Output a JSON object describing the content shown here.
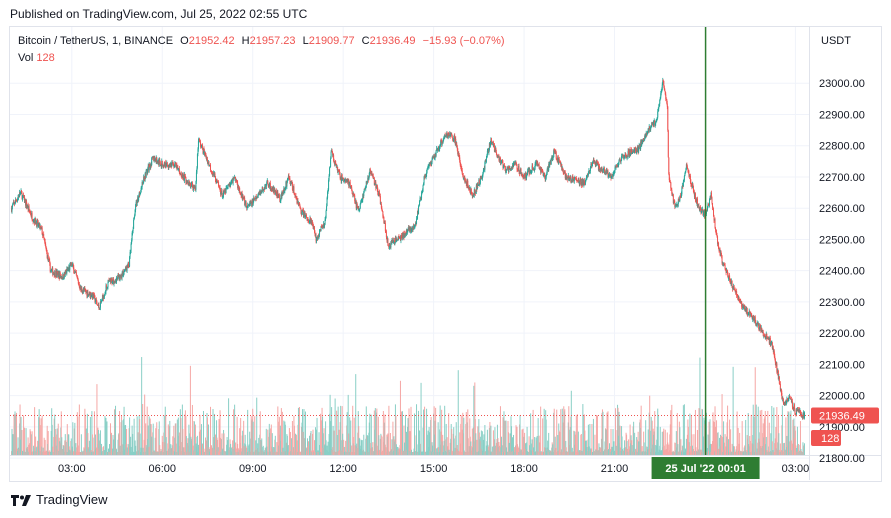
{
  "header": {
    "published": "Published on TradingView.com, Jul 25, 2022 02:55 UTC"
  },
  "legend": {
    "symbol": "Bitcoin / TetherUS, 1, BINANCE",
    "o_label": "O",
    "o_value": "21952.42",
    "h_label": "H",
    "h_value": "21957.23",
    "l_label": "L",
    "l_value": "21909.77",
    "c_label": "C",
    "c_value": "21936.49",
    "change": "−15.93 (−0.07%)",
    "vol_label": "Vol",
    "vol_value": "128"
  },
  "colors": {
    "up": "#26a69a",
    "down": "#ef5350",
    "crosshair": "#2e7d32",
    "up_volume": "#89cfc6",
    "down_volume": "#f5a7a5",
    "grid": "#f0f3fa"
  },
  "footer": {
    "brand": "TradingView",
    "logo": "tradingview-logo-icon"
  },
  "chart_data": {
    "type": "candlestick",
    "symbol": "BTCUSDT",
    "interval": "1",
    "exchange": "BINANCE",
    "y_axis_title": "USDT",
    "ylim": [
      21810,
      23180
    ],
    "y_ticks": [
      "23000.00",
      "22900.00",
      "22800.00",
      "22700.00",
      "22600.00",
      "22500.00",
      "22400.00",
      "22300.00",
      "22200.00",
      "22100.00",
      "22000.00",
      "21900.00",
      "21800.00"
    ],
    "x_ticks": [
      "03:00",
      "06:00",
      "09:00",
      "12:00",
      "15:00",
      "18:00",
      "21:00",
      "03:00"
    ],
    "x_ticks_hours": [
      3,
      6,
      9,
      12,
      15,
      18,
      21,
      27
    ],
    "xlim_hours": [
      0.95,
      27.45
    ],
    "last_price": "21936.49",
    "last_volume": "128",
    "crosshair": {
      "label": "25 Jul '22  00:01",
      "hour": 24.02
    },
    "price_path": [
      [
        1.0,
        22600
      ],
      [
        1.3,
        22650
      ],
      [
        1.7,
        22570
      ],
      [
        2.0,
        22530
      ],
      [
        2.3,
        22400
      ],
      [
        2.7,
        22380
      ],
      [
        3.0,
        22420
      ],
      [
        3.3,
        22340
      ],
      [
        3.7,
        22320
      ],
      [
        3.9,
        22280
      ],
      [
        4.2,
        22360
      ],
      [
        4.6,
        22380
      ],
      [
        4.9,
        22420
      ],
      [
        5.1,
        22600
      ],
      [
        5.4,
        22700
      ],
      [
        5.7,
        22760
      ],
      [
        6.0,
        22740
      ],
      [
        6.4,
        22740
      ],
      [
        6.7,
        22700
      ],
      [
        7.1,
        22660
      ],
      [
        7.2,
        22820
      ],
      [
        7.6,
        22730
      ],
      [
        8.0,
        22640
      ],
      [
        8.4,
        22700
      ],
      [
        8.8,
        22600
      ],
      [
        9.1,
        22630
      ],
      [
        9.5,
        22680
      ],
      [
        9.9,
        22630
      ],
      [
        10.2,
        22700
      ],
      [
        10.6,
        22590
      ],
      [
        11.0,
        22550
      ],
      [
        11.1,
        22500
      ],
      [
        11.4,
        22560
      ],
      [
        11.6,
        22780
      ],
      [
        11.9,
        22700
      ],
      [
        12.2,
        22680
      ],
      [
        12.5,
        22590
      ],
      [
        12.9,
        22720
      ],
      [
        13.2,
        22640
      ],
      [
        13.5,
        22480
      ],
      [
        13.8,
        22500
      ],
      [
        14.1,
        22520
      ],
      [
        14.4,
        22550
      ],
      [
        14.7,
        22700
      ],
      [
        15.0,
        22760
      ],
      [
        15.4,
        22840
      ],
      [
        15.7,
        22820
      ],
      [
        16.0,
        22700
      ],
      [
        16.3,
        22640
      ],
      [
        16.6,
        22700
      ],
      [
        16.9,
        22820
      ],
      [
        17.1,
        22770
      ],
      [
        17.4,
        22720
      ],
      [
        17.7,
        22740
      ],
      [
        18.0,
        22700
      ],
      [
        18.4,
        22740
      ],
      [
        18.7,
        22700
      ],
      [
        19.0,
        22780
      ],
      [
        19.4,
        22700
      ],
      [
        19.7,
        22690
      ],
      [
        20.0,
        22680
      ],
      [
        20.3,
        22750
      ],
      [
        20.6,
        22720
      ],
      [
        20.9,
        22700
      ],
      [
        21.2,
        22760
      ],
      [
        21.5,
        22780
      ],
      [
        21.8,
        22790
      ],
      [
        22.1,
        22850
      ],
      [
        22.4,
        22880
      ],
      [
        22.6,
        23010
      ],
      [
        22.75,
        22920
      ],
      [
        22.8,
        22700
      ],
      [
        23.0,
        22600
      ],
      [
        23.2,
        22640
      ],
      [
        23.4,
        22740
      ],
      [
        23.6,
        22660
      ],
      [
        23.8,
        22600
      ],
      [
        24.0,
        22580
      ],
      [
        24.2,
        22640
      ],
      [
        24.4,
        22500
      ],
      [
        24.6,
        22420
      ],
      [
        24.8,
        22380
      ],
      [
        25.0,
        22330
      ],
      [
        25.3,
        22280
      ],
      [
        25.6,
        22250
      ],
      [
        25.8,
        22220
      ],
      [
        26.0,
        22190
      ],
      [
        26.2,
        22170
      ],
      [
        26.4,
        22080
      ],
      [
        26.6,
        21970
      ],
      [
        26.8,
        22000
      ],
      [
        27.0,
        21950
      ],
      [
        27.3,
        21936.49
      ]
    ]
  }
}
